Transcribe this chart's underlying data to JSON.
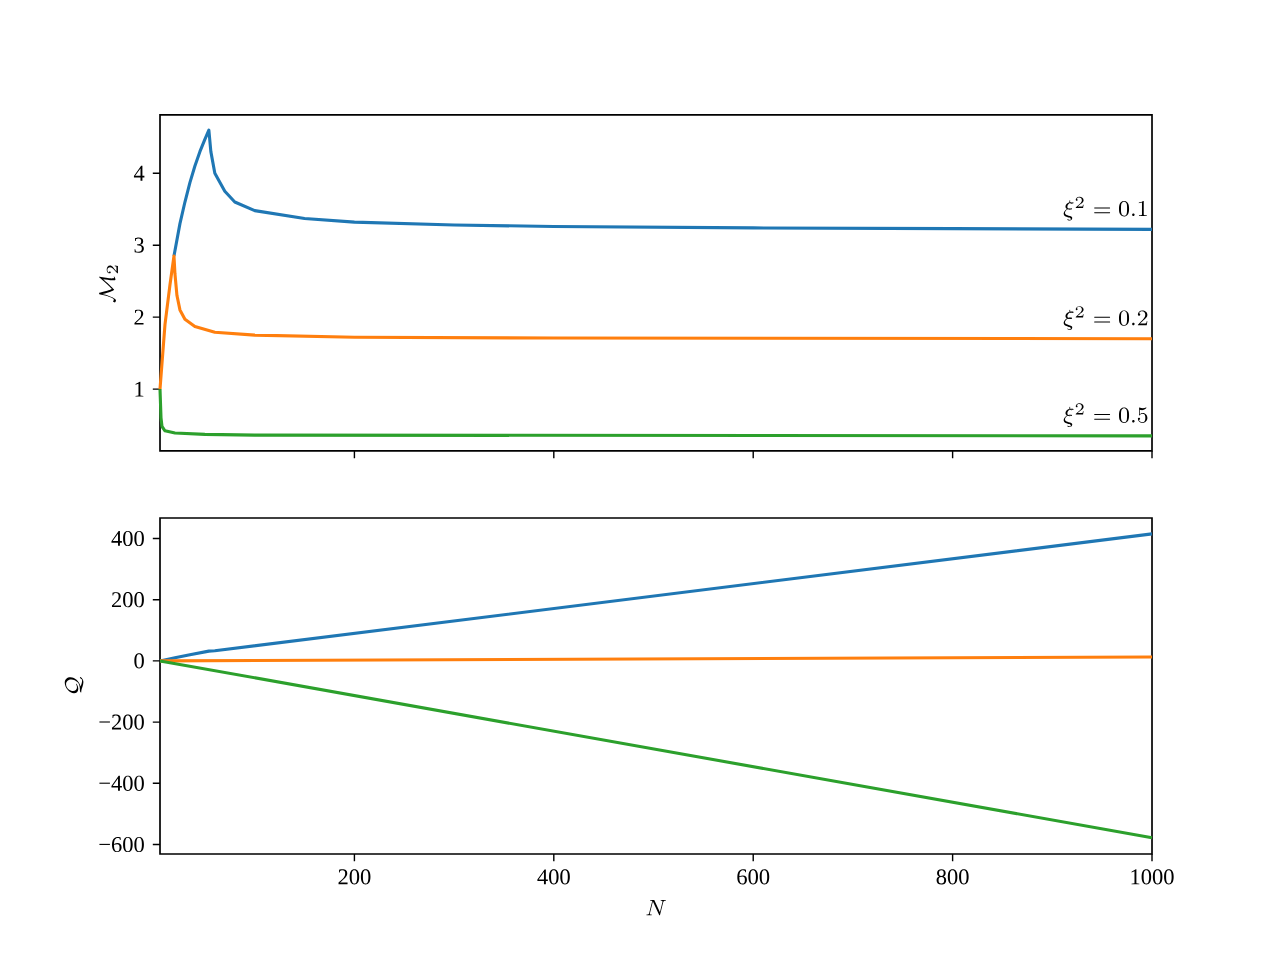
{
  "chart_data": [
    {
      "type": "line",
      "ylabel": "\\mathcal{M}_2",
      "xlim": [
        5,
        1000
      ],
      "ylim": [
        0.14,
        4.81
      ],
      "xticks": [
        200,
        400,
        600,
        800,
        1000
      ],
      "yticks": [
        1,
        2,
        3,
        4
      ],
      "tick_labels": "y",
      "series": [
        {
          "color": "#1f77b4",
          "x": [
            19,
            25,
            30,
            35,
            40,
            45,
            50,
            54,
            56,
            60,
            70,
            80,
            100,
            150,
            200,
            300,
            400,
            600,
            800,
            1000
          ],
          "values": [
            2.85,
            3.3,
            3.6,
            3.87,
            4.1,
            4.3,
            4.47,
            4.6,
            4.3,
            4.0,
            3.75,
            3.6,
            3.48,
            3.37,
            3.32,
            3.28,
            3.26,
            3.24,
            3.23,
            3.22
          ]
        },
        {
          "color": "#ff7f0e",
          "x": [
            5,
            10,
            15,
            19,
            20,
            22,
            25,
            30,
            40,
            60,
            100,
            200,
            400,
            1000
          ],
          "values": [
            1,
            1.9,
            2.45,
            2.85,
            2.6,
            2.3,
            2.1,
            1.97,
            1.87,
            1.79,
            1.75,
            1.72,
            1.71,
            1.7
          ]
        },
        {
          "color": "#2ca02c",
          "x": [
            5,
            6,
            7,
            10,
            20,
            50,
            100,
            1000
          ],
          "values": [
            1,
            0.6,
            0.48,
            0.42,
            0.39,
            0.37,
            0.36,
            0.35
          ]
        }
      ],
      "annotations": [
        "\\xi^2 = 0.1",
        "\\xi^2 = 0.2",
        "\\xi^2 = 0.5"
      ]
    },
    {
      "type": "line",
      "xlabel": "N",
      "ylabel": "\\mathcal{Q}",
      "xlim": [
        5,
        1000
      ],
      "ylim": [
        -631,
        467
      ],
      "xticks": [
        200,
        400,
        600,
        800,
        1000
      ],
      "yticks": [
        {
          "value": -600,
          "label": "−600"
        },
        {
          "value": -400,
          "label": "−400"
        },
        {
          "value": -200,
          "label": "−200"
        },
        0,
        200,
        400
      ],
      "series": [
        {
          "color": "#1f77b4",
          "x": [
            5,
            20,
            35,
            54,
            60,
            1000
          ],
          "values": [
            0,
            10,
            20,
            32,
            33,
            415
          ]
        },
        {
          "color": "#ff7f0e",
          "x": [
            5,
            1000
          ],
          "values": [
            0,
            13
          ]
        },
        {
          "color": "#2ca02c",
          "x": [
            5,
            1000
          ],
          "values": [
            0,
            -578
          ]
        }
      ]
    }
  ]
}
